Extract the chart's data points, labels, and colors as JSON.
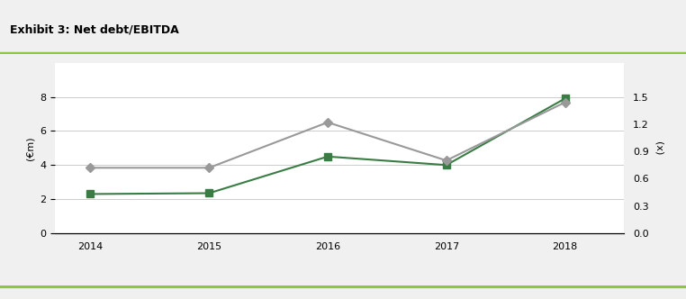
{
  "title": "Exhibit 3: Net debt/EBITDA",
  "years": [
    2014,
    2015,
    2016,
    2017,
    2018
  ],
  "net_debt": [
    2.3,
    2.35,
    4.5,
    4.0,
    7.9
  ],
  "net_debt_ebitda": [
    0.72,
    0.72,
    1.22,
    0.8,
    1.44
  ],
  "left_ylim": [
    0,
    10
  ],
  "left_yticks": [
    0,
    2,
    4,
    6,
    8
  ],
  "right_ylim": [
    0,
    1.875
  ],
  "right_yticks": [
    0.0,
    0.3,
    0.6,
    0.9,
    1.2,
    1.5
  ],
  "ylabel_left": "(€m)",
  "ylabel_right": "(x)",
  "net_debt_color": "#3a7d44",
  "ebitda_color": "#999999",
  "background_color": "#ffffff",
  "header_color": "#d9d9d9",
  "title_fontsize": 9,
  "axis_fontsize": 8,
  "legend_fontsize": 8,
  "footer_bar_color": "#8dc63f",
  "header_bar_color": "#8dc63f"
}
